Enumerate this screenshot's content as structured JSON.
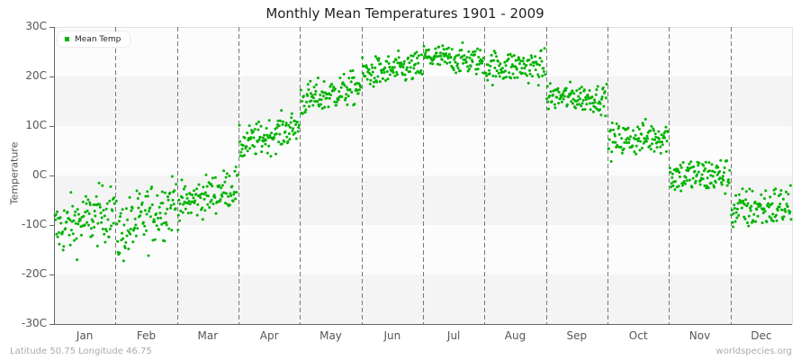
{
  "title": "Monthly Mean Temperatures 1901 - 2009",
  "y_axis_label": "Temperature",
  "footer": {
    "left": "Latitude 50.75 Longitude 46.75",
    "right": "worldspecies.org"
  },
  "legend": {
    "label": "Mean Temp",
    "color": "#00b300"
  },
  "colors": {
    "point": "#00b300",
    "band_light": "#fcfcfc",
    "band_dark": "#f4f4f4",
    "axis": "#666666",
    "gridline": "#777777"
  },
  "chart_data": {
    "type": "scatter",
    "title": "Monthly Mean Temperatures 1901 - 2009",
    "xlabel": "",
    "ylabel": "Temperature",
    "ylim": [
      -30,
      30
    ],
    "y_ticks": [
      "30C",
      "20C",
      "10C",
      "0C",
      "-10C",
      "-20C",
      "-30C"
    ],
    "categories": [
      "Jan",
      "Feb",
      "Mar",
      "Apr",
      "May",
      "Jun",
      "Jul",
      "Aug",
      "Sep",
      "Oct",
      "Nov",
      "Dec"
    ],
    "grid": true,
    "legend_position": "top-left",
    "years": [
      1901,
      2009
    ],
    "points_per_month": 109,
    "series": [
      {
        "name": "Mean Temp",
        "monthly_stats": [
          {
            "month": "Jan",
            "mean": -9.5,
            "min": -19,
            "max": 0.5,
            "trend_start": -11,
            "trend_end": -7
          },
          {
            "month": "Feb",
            "mean": -9.0,
            "min": -21.5,
            "max": 0.0,
            "trend_start": -12,
            "trend_end": -5
          },
          {
            "month": "Mar",
            "mean": -4.0,
            "min": -11,
            "max": 2.5,
            "trend_start": -6,
            "trend_end": -2
          },
          {
            "month": "Apr",
            "mean": 8.0,
            "min": 3,
            "max": 14.5,
            "trend_start": 6,
            "trend_end": 10
          },
          {
            "month": "May",
            "mean": 16.5,
            "min": 11.5,
            "max": 23,
            "trend_start": 15,
            "trend_end": 18
          },
          {
            "month": "Jun",
            "mean": 21.0,
            "min": 16,
            "max": 26.5,
            "trend_start": 20.5,
            "trend_end": 22
          },
          {
            "month": "Jul",
            "mean": 23.5,
            "min": 19,
            "max": 28.5,
            "trend_start": 24,
            "trend_end": 23
          },
          {
            "month": "Aug",
            "mean": 22.0,
            "min": 16,
            "max": 27,
            "trend_start": 22,
            "trend_end": 22
          },
          {
            "month": "Sep",
            "mean": 15.5,
            "min": 10.5,
            "max": 20,
            "trend_start": 16,
            "trend_end": 15.5
          },
          {
            "month": "Oct",
            "mean": 7.5,
            "min": 0.5,
            "max": 12,
            "trend_start": 7,
            "trend_end": 8
          },
          {
            "month": "Nov",
            "mean": 0.0,
            "min": -8.5,
            "max": 4,
            "trend_start": 0,
            "trend_end": 0
          },
          {
            "month": "Dec",
            "mean": -7.0,
            "min": -15.5,
            "max": -1,
            "trend_start": -7,
            "trend_end": -6
          }
        ]
      }
    ]
  }
}
